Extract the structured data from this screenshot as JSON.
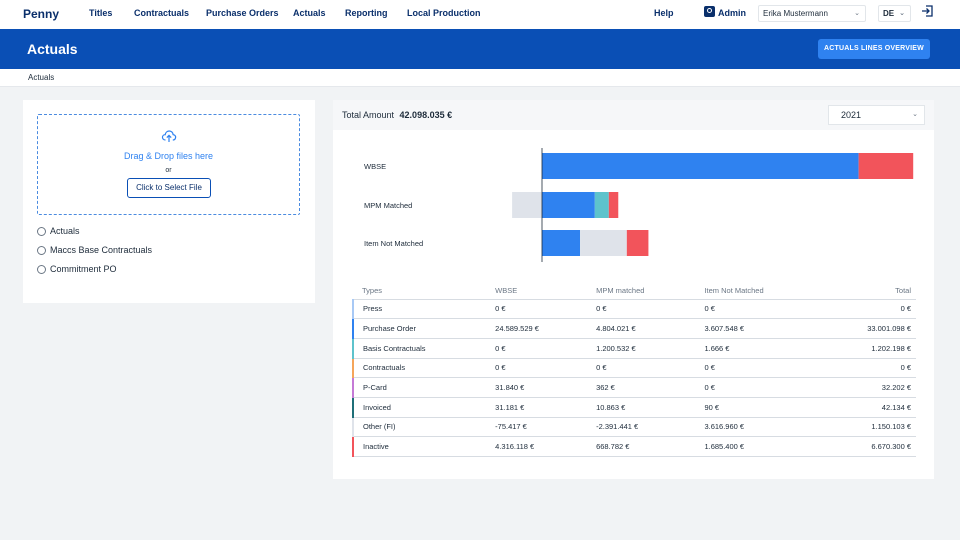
{
  "nav": {
    "brand": "Penny",
    "links": [
      "Titles",
      "Contractuals",
      "Purchase Orders",
      "Actuals",
      "Reporting",
      "Local Production"
    ],
    "help": "Help",
    "admin": "Admin",
    "user": "Erika Mustermann",
    "language": "DE"
  },
  "header": {
    "title": "Actuals",
    "overview_button": "ACTUALS LINES OVERVIEW"
  },
  "breadcrumb": "Actuals",
  "upload": {
    "drop_text": "Drag & Drop files here",
    "or_text": "or",
    "select_button": "Click to Select File",
    "options": [
      "Actuals",
      "Maccs Base Contractuals",
      "Commitment PO"
    ]
  },
  "summary": {
    "total_label": "Total Amount",
    "total_value": "42.098.035 €",
    "year": "2021"
  },
  "chart_data": {
    "type": "bar",
    "orientation": "horizontal",
    "stacked": true,
    "categories": [
      "WBSE",
      "MPM Matched",
      "Item Not Matched"
    ],
    "series": [
      {
        "color": "#2f82f0",
        "values": [
          35.91,
          5.99,
          4.32
        ]
      },
      {
        "color": "#5ec3cc",
        "values": [
          0,
          1.59,
          0
        ]
      },
      {
        "color": "#dfe3ea",
        "values": [
          0,
          -3.39,
          5.3
        ]
      },
      {
        "color": "#f2545b",
        "values": [
          6.19,
          1.07,
          2.45
        ]
      }
    ],
    "xlim": [
      -3.5,
      43
    ],
    "grid": false,
    "legend": "none"
  },
  "table": {
    "columns": [
      "Types",
      "WBSE",
      "MPM matched",
      "Item Not Matched",
      "Total"
    ],
    "rows": [
      {
        "type": "Press",
        "color": "#a8c9f5",
        "values": [
          "0 €",
          "0 €",
          "0 €",
          "0 €"
        ]
      },
      {
        "type": "Purchase Order",
        "color": "#2f82f0",
        "values": [
          "24.589.529 €",
          "4.804.021 €",
          "3.607.548 €",
          "33.001.098 €"
        ]
      },
      {
        "type": "Basis Contractuals",
        "color": "#5ec3cc",
        "values": [
          "0 €",
          "1.200.532 €",
          "1.666 €",
          "1.202.198 €"
        ]
      },
      {
        "type": "Contractuals",
        "color": "#f5a55a",
        "values": [
          "0 €",
          "0 €",
          "0 €",
          "0 €"
        ]
      },
      {
        "type": "P-Card",
        "color": "#c57ad6",
        "values": [
          "31.840 €",
          "362 €",
          "0 €",
          "32.202 €"
        ]
      },
      {
        "type": "Invoiced",
        "color": "#1f6f78",
        "values": [
          "31.181 €",
          "10.863 €",
          "90 €",
          "42.134 €"
        ]
      },
      {
        "type": "Other (FI)",
        "color": "#dfe3ea",
        "values": [
          "-75.417 €",
          "-2.391.441 €",
          "3.616.960 €",
          "1.150.103 €"
        ]
      },
      {
        "type": "Inactive",
        "color": "#f2545b",
        "values": [
          "4.316.118 €",
          "668.782 €",
          "1.685.400 €",
          "6.670.300 €"
        ]
      }
    ]
  }
}
